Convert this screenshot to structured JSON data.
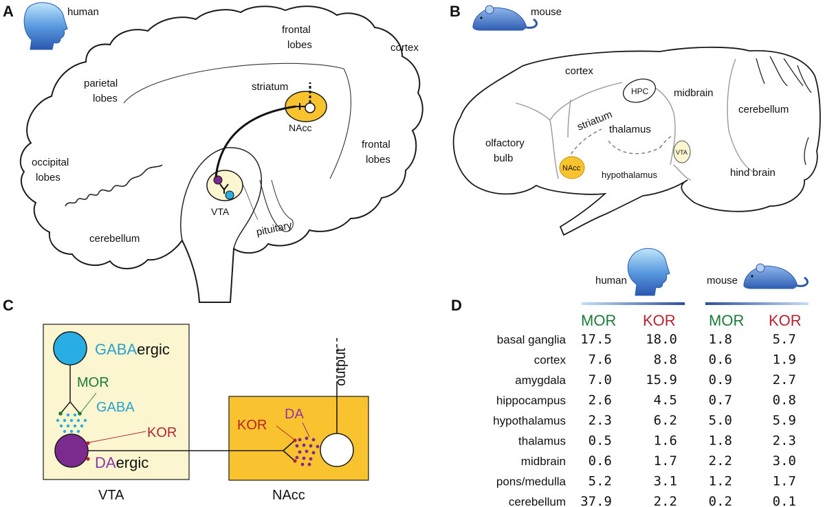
{
  "colors": {
    "nacc_yellow": "#f9c32f",
    "vta_pale": "#fbf6d0",
    "gaba_blue": "#29aee4",
    "da_purple": "#7b2a8e",
    "mor_green": "#1b7a3a",
    "kor_red": "#b5232f",
    "gaba_text": "#2aa0cf",
    "da_text": "#8e35a8",
    "head_blue": "#3f76c8"
  },
  "icons": [
    "human-head-icon",
    "mouse-icon"
  ],
  "panelA": {
    "letter": "A",
    "species": "human",
    "labels": {
      "frontal_lobes_top": [
        "frontal",
        "lobes"
      ],
      "cortex": "cortex",
      "parietal": [
        "parietal",
        "lobes"
      ],
      "striatum": "striatum",
      "nacc": "NAcc",
      "occipital": [
        "occipital",
        "lobes"
      ],
      "frontal_lobes_mid": [
        "frontal",
        "lobes"
      ],
      "vta": "VTA",
      "cerebellum": "cerebellum",
      "pituitary": "pituitary"
    }
  },
  "panelB": {
    "letter": "B",
    "species": "mouse",
    "labels": {
      "cortex": "cortex",
      "hpc": "HPC",
      "midbrain": "midbrain",
      "cerebellum": "cerebellum",
      "striatum": "striatum",
      "thalamus": "thalamus",
      "olfactory": [
        "olfactory",
        "bulb"
      ],
      "nacc": "NAcc",
      "vta": "VTA",
      "hypothalamus": "hypothalamus",
      "hind_brain": "hind brain"
    }
  },
  "panelC": {
    "letter": "C",
    "gabaergic": [
      "GABA",
      "ergic"
    ],
    "mor": "MOR",
    "gaba": "GABA",
    "kor_vta": "KOR",
    "daergic": [
      "DA",
      "ergic"
    ],
    "vta": "VTA",
    "output": "output",
    "kor_nacc": "KOR",
    "da": "DA",
    "nacc": "NAcc"
  },
  "panelD": {
    "letter": "D",
    "species": [
      "human",
      "mouse"
    ],
    "headers": [
      "MOR",
      "KOR",
      "MOR",
      "KOR"
    ],
    "rows": [
      {
        "region": "basal ganglia",
        "values": [
          "17.5",
          "18.0",
          "1.8",
          "5.7"
        ]
      },
      {
        "region": "cortex",
        "values": [
          "7.6",
          "8.8",
          "0.6",
          "1.9"
        ]
      },
      {
        "region": "amygdala",
        "values": [
          "7.0",
          "15.9",
          "0.9",
          "2.7"
        ]
      },
      {
        "region": "hippocampus",
        "values": [
          "2.6",
          "4.5",
          "0.7",
          "0.8"
        ]
      },
      {
        "region": "hypothalamus",
        "values": [
          "2.3",
          "6.2",
          "5.0",
          "5.9"
        ]
      },
      {
        "region": "thalamus",
        "values": [
          "0.5",
          "1.6",
          "1.8",
          "2.3"
        ]
      },
      {
        "region": "midbrain",
        "values": [
          "0.6",
          "1.7",
          "2.2",
          "3.0"
        ]
      },
      {
        "region": "pons/medulla",
        "values": [
          "5.2",
          "3.1",
          "1.2",
          "1.7"
        ]
      },
      {
        "region": "cerebellum",
        "values": [
          "37.9",
          "2.2",
          "0.2",
          "0.1"
        ]
      }
    ]
  }
}
